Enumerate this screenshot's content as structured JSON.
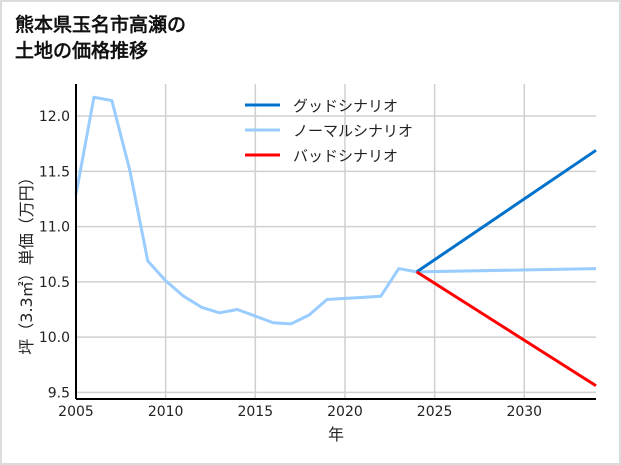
{
  "chart_data": {
    "type": "line",
    "title": "熊本県玉名市高瀬の\n土地の価格推移",
    "title_lines": [
      "熊本県玉名市高瀬の",
      "土地の価格推移"
    ],
    "xlabel": "年",
    "ylabel": "坪（3.3㎡）単価（万円）",
    "xlim": [
      2005,
      2034
    ],
    "ylim": [
      9.44,
      12.29
    ],
    "xticks": [
      2005,
      2010,
      2015,
      2020,
      2025,
      2030
    ],
    "yticks": [
      9.5,
      10.0,
      10.5,
      11.0,
      11.5,
      12.0
    ],
    "ytick_labels": [
      "9.5",
      "10.0",
      "10.5",
      "11.0",
      "11.5",
      "12.0"
    ],
    "grid": true,
    "legend_position": "top-center",
    "series": [
      {
        "name": "グッドシナリオ",
        "color": "#0072cc",
        "x": [
          2024,
          2034
        ],
        "y": [
          10.59,
          11.69
        ]
      },
      {
        "name": "ノーマルシナリオ",
        "color": "#99ccff",
        "x": [
          2005,
          2006,
          2007,
          2008,
          2009,
          2010,
          2011,
          2012,
          2013,
          2014,
          2015,
          2016,
          2017,
          2018,
          2019,
          2020,
          2021,
          2022,
          2023,
          2024,
          2034
        ],
        "y": [
          11.29,
          12.17,
          12.14,
          11.51,
          10.69,
          10.51,
          10.37,
          10.27,
          10.22,
          10.25,
          10.19,
          10.13,
          10.12,
          10.2,
          10.34,
          10.35,
          10.36,
          10.37,
          10.62,
          10.59,
          10.62
        ]
      },
      {
        "name": "バッドシナリオ",
        "color": "#ff0000",
        "x": [
          2024,
          2034
        ],
        "y": [
          10.59,
          9.56
        ]
      }
    ]
  }
}
